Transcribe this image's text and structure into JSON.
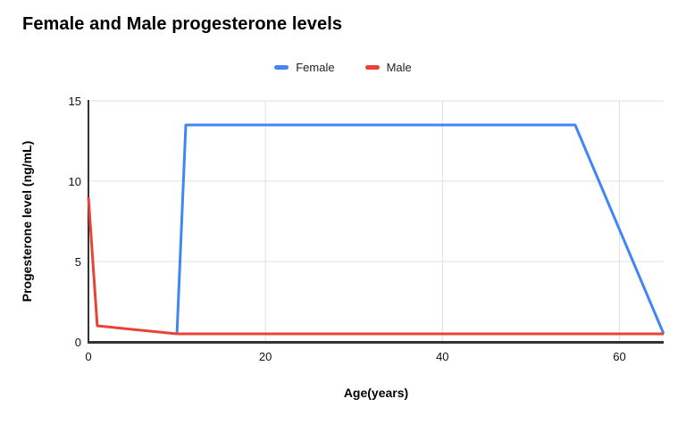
{
  "header": {
    "title": "Female and Male progesterone levels"
  },
  "legend": {
    "items": [
      {
        "label": "Female",
        "color": "#4285F4"
      },
      {
        "label": "Male",
        "color": "#EA4335"
      }
    ]
  },
  "chart_data": {
    "type": "line",
    "title": "Female and Male progesterone levels",
    "xlabel": "Age(years)",
    "ylabel": "Progesterone level (ng/mL)",
    "xlim": [
      0,
      65
    ],
    "ylim": [
      0,
      15
    ],
    "x_ticks": [
      0,
      20,
      40,
      60
    ],
    "y_ticks": [
      0,
      5,
      10,
      15
    ],
    "grid": true,
    "legend_position": "top-center",
    "axis_color": "#333333",
    "grid_color": "#e0e0e0",
    "series": [
      {
        "name": "Female",
        "color": "#4285F4",
        "points": [
          [
            10,
            0.5
          ],
          [
            11,
            13.5
          ],
          [
            55,
            13.5
          ],
          [
            65,
            0.5
          ]
        ]
      },
      {
        "name": "Male",
        "color": "#EA4335",
        "points": [
          [
            0,
            9
          ],
          [
            1,
            1
          ],
          [
            10,
            0.5
          ],
          [
            65,
            0.5
          ]
        ]
      }
    ]
  }
}
